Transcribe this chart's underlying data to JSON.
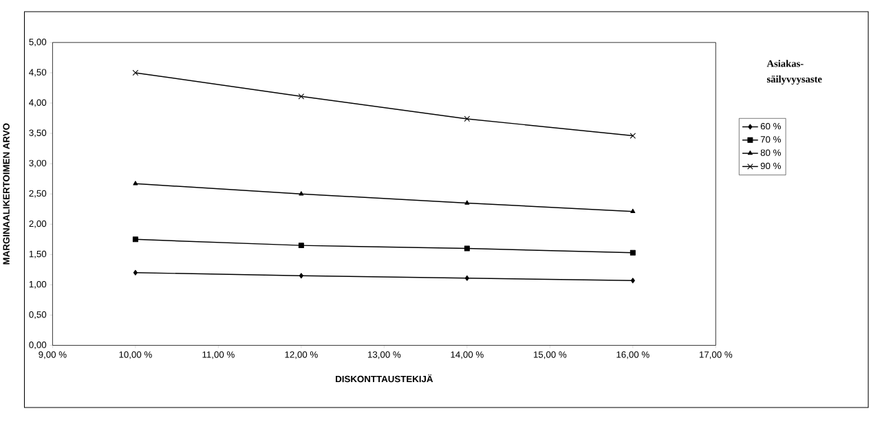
{
  "chart_data": {
    "type": "line",
    "xlabel": "DISKONTTAUSTEKIJÄ",
    "ylabel": "MARGINAALIKERTOIMEN ARVO",
    "legend_title": "Asiakas-säilyvyysaste",
    "x": [
      10,
      12,
      14,
      16
    ],
    "series": [
      {
        "name": "60 %",
        "color": "#000000",
        "marker": "diamond",
        "values": [
          1.2,
          1.15,
          1.11,
          1.07
        ]
      },
      {
        "name": "70 %",
        "color": "#000000",
        "marker": "square",
        "values": [
          1.75,
          1.65,
          1.6,
          1.53
        ]
      },
      {
        "name": "80 %",
        "color": "#000000",
        "marker": "triangle",
        "values": [
          2.67,
          2.5,
          2.35,
          2.21
        ]
      },
      {
        "name": "90 %",
        "color": "#000000",
        "marker": "cross",
        "values": [
          4.5,
          4.11,
          3.74,
          3.46
        ]
      }
    ],
    "xlim": [
      9,
      17
    ],
    "xticks": [
      {
        "value": 9,
        "label": "9,00 %"
      },
      {
        "value": 10,
        "label": "10,00 %"
      },
      {
        "value": 11,
        "label": "11,00 %"
      },
      {
        "value": 12,
        "label": "12,00 %"
      },
      {
        "value": 13,
        "label": "13,00 %"
      },
      {
        "value": 14,
        "label": "14,00 %"
      },
      {
        "value": 15,
        "label": "15,00 %"
      },
      {
        "value": 16,
        "label": "16,00 %"
      },
      {
        "value": 17,
        "label": "17,00 %"
      }
    ],
    "ylim": [
      0,
      5
    ],
    "yticks": [
      {
        "value": 0,
        "label": "0,00"
      },
      {
        "value": 0.5,
        "label": "0,50"
      },
      {
        "value": 1,
        "label": "1,00"
      },
      {
        "value": 1.5,
        "label": "1,50"
      },
      {
        "value": 2,
        "label": "2,00"
      },
      {
        "value": 2.5,
        "label": "2,50"
      },
      {
        "value": 3,
        "label": "3,00"
      },
      {
        "value": 3.5,
        "label": "3,50"
      },
      {
        "value": 4,
        "label": "4,00"
      },
      {
        "value": 4.5,
        "label": "4,50"
      },
      {
        "value": 5,
        "label": "5,00"
      }
    ],
    "grid": false,
    "legend": "right",
    "line_style": "solid"
  }
}
